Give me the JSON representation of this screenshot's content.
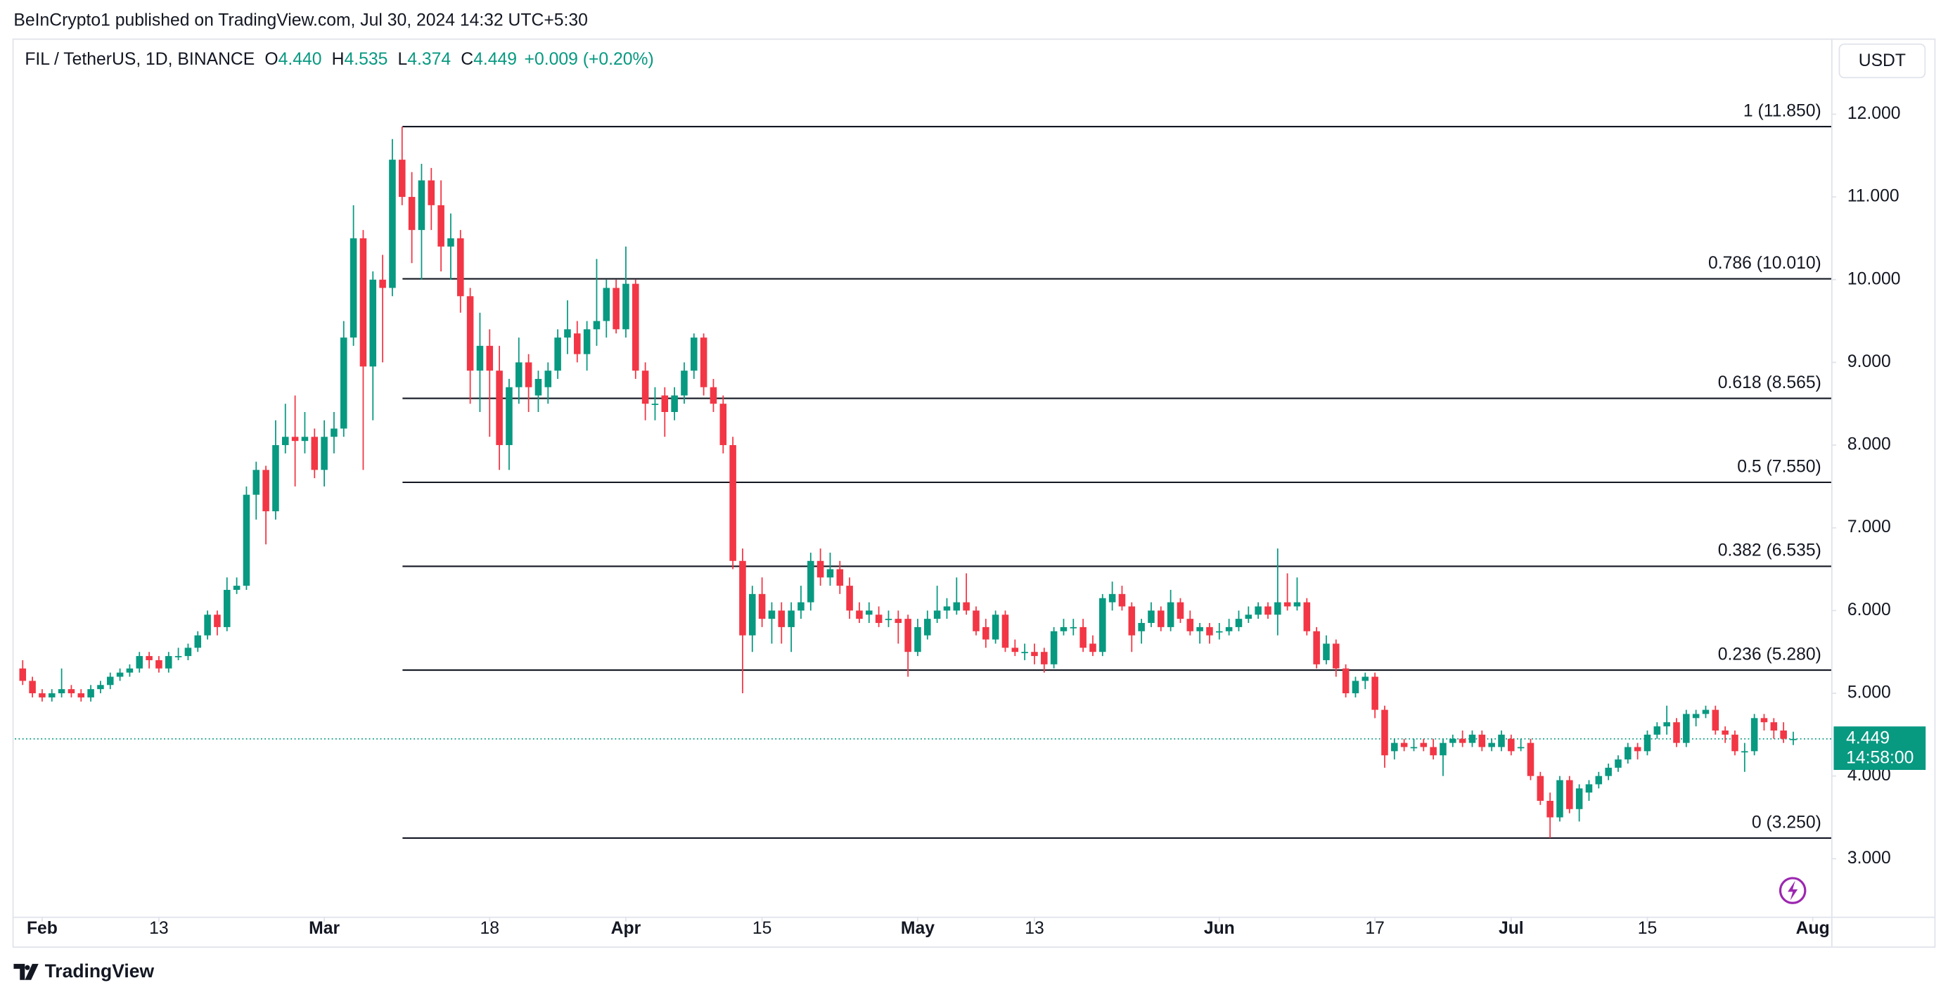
{
  "header": "BeInCrypto1 published on TradingView.com, Jul 30, 2024 14:32 UTC+5:30",
  "footer": "TradingView",
  "chart_data": {
    "type": "candlestick",
    "title": "FIL / TetherUS, 1D, BINANCE",
    "legend": {
      "o_key": "O",
      "open": "4.440",
      "h_key": "H",
      "high": "4.535",
      "l_key": "L",
      "low": "4.374",
      "c_key": "C",
      "close": "4.449",
      "change": "+0.009 (+0.20%)"
    },
    "currency": "USDT",
    "last_price": 4.449,
    "countdown": "14:58:00",
    "up_color": "#089981",
    "down_color": "#f23645",
    "xlim": [
      -0.8,
      185.9
    ],
    "xticks": [
      {
        "value": 2,
        "label": "Feb"
      },
      {
        "value": 14,
        "label": "13"
      },
      {
        "value": 31,
        "label": "Mar"
      },
      {
        "value": 48,
        "label": "18"
      },
      {
        "value": 62,
        "label": "Apr"
      },
      {
        "value": 76,
        "label": "15"
      },
      {
        "value": 92,
        "label": "May"
      },
      {
        "value": 104,
        "label": "13"
      },
      {
        "value": 123,
        "label": "Jun"
      },
      {
        "value": 139,
        "label": "17"
      },
      {
        "value": 153,
        "label": "Jul"
      },
      {
        "value": 167,
        "label": "15"
      },
      {
        "value": 184,
        "label": "Aug"
      }
    ],
    "ylim": [
      2.3,
      12.9
    ],
    "yticks": [
      {
        "value": 3,
        "label": "3.000"
      },
      {
        "value": 4,
        "label": "4.000"
      },
      {
        "value": 5,
        "label": "5.000"
      },
      {
        "value": 6,
        "label": "6.000"
      },
      {
        "value": 7,
        "label": "7.000"
      },
      {
        "value": 8,
        "label": "8.000"
      },
      {
        "value": 9,
        "label": "9.000"
      },
      {
        "value": 10,
        "label": "10.000"
      },
      {
        "value": 11,
        "label": "11.000"
      },
      {
        "value": 12,
        "label": "12.000"
      }
    ],
    "fib_levels": [
      {
        "label": "1 (11.850)",
        "value": 11.85
      },
      {
        "label": "0.786 (10.010)",
        "value": 10.01
      },
      {
        "label": "0.618 (8.565)",
        "value": 8.565
      },
      {
        "label": "0.5 (7.550)",
        "value": 7.55
      },
      {
        "label": "0.382 (6.535)",
        "value": 6.535
      },
      {
        "label": "0.236 (5.280)",
        "value": 5.28
      },
      {
        "label": "0 (3.250)",
        "value": 3.25
      }
    ],
    "candles": [
      [
        5.3,
        5.4,
        5.1,
        5.15
      ],
      [
        5.15,
        5.2,
        4.95,
        5.0
      ],
      [
        5.0,
        5.05,
        4.9,
        4.95
      ],
      [
        4.95,
        5.05,
        4.9,
        5.0
      ],
      [
        5.0,
        5.3,
        4.95,
        5.05
      ],
      [
        5.05,
        5.1,
        4.95,
        5.0
      ],
      [
        5.0,
        5.05,
        4.9,
        4.95
      ],
      [
        4.95,
        5.1,
        4.9,
        5.05
      ],
      [
        5.05,
        5.15,
        5.0,
        5.1
      ],
      [
        5.1,
        5.25,
        5.05,
        5.2
      ],
      [
        5.2,
        5.3,
        5.15,
        5.25
      ],
      [
        5.25,
        5.35,
        5.2,
        5.3
      ],
      [
        5.3,
        5.5,
        5.25,
        5.45
      ],
      [
        5.45,
        5.5,
        5.3,
        5.4
      ],
      [
        5.4,
        5.45,
        5.25,
        5.3
      ],
      [
        5.3,
        5.5,
        5.25,
        5.45
      ],
      [
        5.45,
        5.55,
        5.4,
        5.45
      ],
      [
        5.45,
        5.6,
        5.4,
        5.55
      ],
      [
        5.55,
        5.75,
        5.5,
        5.7
      ],
      [
        5.7,
        6.0,
        5.65,
        5.95
      ],
      [
        5.95,
        6.0,
        5.7,
        5.8
      ],
      [
        5.8,
        6.4,
        5.75,
        6.25
      ],
      [
        6.25,
        6.4,
        6.2,
        6.3
      ],
      [
        6.3,
        7.5,
        6.25,
        7.4
      ],
      [
        7.4,
        7.8,
        7.1,
        7.7
      ],
      [
        7.7,
        7.75,
        6.8,
        7.2
      ],
      [
        7.2,
        8.3,
        7.1,
        8.0
      ],
      [
        8.0,
        8.5,
        7.9,
        8.1
      ],
      [
        8.1,
        8.6,
        7.5,
        8.05
      ],
      [
        8.05,
        8.4,
        7.9,
        8.1
      ],
      [
        8.1,
        8.2,
        7.6,
        7.7
      ],
      [
        7.7,
        8.3,
        7.5,
        8.1
      ],
      [
        8.1,
        8.4,
        7.9,
        8.2
      ],
      [
        8.2,
        9.5,
        8.1,
        9.3
      ],
      [
        9.3,
        10.9,
        9.2,
        10.5
      ],
      [
        10.5,
        10.6,
        7.7,
        8.95
      ],
      [
        8.95,
        10.1,
        8.3,
        10.0
      ],
      [
        10.0,
        10.3,
        9.0,
        9.9
      ],
      [
        9.9,
        11.7,
        9.8,
        11.45
      ],
      [
        11.45,
        11.85,
        10.9,
        11.0
      ],
      [
        11.0,
        11.3,
        10.2,
        10.6
      ],
      [
        10.6,
        11.4,
        10.0,
        11.2
      ],
      [
        11.2,
        11.35,
        10.6,
        10.9
      ],
      [
        10.9,
        11.2,
        10.1,
        10.4
      ],
      [
        10.4,
        10.8,
        10.0,
        10.5
      ],
      [
        10.5,
        10.6,
        9.6,
        9.8
      ],
      [
        9.8,
        9.9,
        8.5,
        8.9
      ],
      [
        8.9,
        9.6,
        8.4,
        9.2
      ],
      [
        9.2,
        9.4,
        8.1,
        8.9
      ],
      [
        8.9,
        9.2,
        7.7,
        8.0
      ],
      [
        8.0,
        8.8,
        7.7,
        8.7
      ],
      [
        8.7,
        9.3,
        8.5,
        9.0
      ],
      [
        9.0,
        9.1,
        8.4,
        8.7
      ],
      [
        8.6,
        8.9,
        8.4,
        8.8
      ],
      [
        8.7,
        9.0,
        8.5,
        8.9
      ],
      [
        8.9,
        9.4,
        8.8,
        9.3
      ],
      [
        9.3,
        9.75,
        9.1,
        9.4
      ],
      [
        9.35,
        9.5,
        9.0,
        9.1
      ],
      [
        9.1,
        9.5,
        8.9,
        9.4
      ],
      [
        9.4,
        10.25,
        9.2,
        9.5
      ],
      [
        9.5,
        10.0,
        9.3,
        9.9
      ],
      [
        9.9,
        10.0,
        9.35,
        9.4
      ],
      [
        9.4,
        10.4,
        9.3,
        9.95
      ],
      [
        9.95,
        10.0,
        8.8,
        8.9
      ],
      [
        8.9,
        9.0,
        8.3,
        8.5
      ],
      [
        8.5,
        8.7,
        8.3,
        8.5
      ],
      [
        8.6,
        8.7,
        8.1,
        8.4
      ],
      [
        8.4,
        8.7,
        8.3,
        8.6
      ],
      [
        8.6,
        9.0,
        8.5,
        8.9
      ],
      [
        8.9,
        9.35,
        8.8,
        9.3
      ],
      [
        9.3,
        9.35,
        8.6,
        8.7
      ],
      [
        8.7,
        8.8,
        8.4,
        8.5
      ],
      [
        8.5,
        8.6,
        7.9,
        8.0
      ],
      [
        8.0,
        8.1,
        6.5,
        6.6
      ],
      [
        6.6,
        6.75,
        5.0,
        5.7
      ],
      [
        5.7,
        6.3,
        5.5,
        6.2
      ],
      [
        6.2,
        6.4,
        5.8,
        5.9
      ],
      [
        5.9,
        6.1,
        5.6,
        6.0
      ],
      [
        6.0,
        6.1,
        5.6,
        5.8
      ],
      [
        5.8,
        6.1,
        5.5,
        6.0
      ],
      [
        6.0,
        6.3,
        5.9,
        6.1
      ],
      [
        6.1,
        6.7,
        6.0,
        6.6
      ],
      [
        6.6,
        6.75,
        6.3,
        6.4
      ],
      [
        6.4,
        6.7,
        6.3,
        6.5
      ],
      [
        6.5,
        6.6,
        6.2,
        6.3
      ],
      [
        6.3,
        6.4,
        5.9,
        6.0
      ],
      [
        6.0,
        6.1,
        5.85,
        5.9
      ],
      [
        5.95,
        6.1,
        5.85,
        6.0
      ],
      [
        5.95,
        6.05,
        5.8,
        5.85
      ],
      [
        5.9,
        6.0,
        5.8,
        5.9
      ],
      [
        5.9,
        6.0,
        5.6,
        5.85
      ],
      [
        5.9,
        5.95,
        5.2,
        5.5
      ],
      [
        5.5,
        5.9,
        5.45,
        5.8
      ],
      [
        5.7,
        6.0,
        5.65,
        5.9
      ],
      [
        5.9,
        6.3,
        5.85,
        6.0
      ],
      [
        6.0,
        6.15,
        5.9,
        6.05
      ],
      [
        6.0,
        6.4,
        5.95,
        6.1
      ],
      [
        6.1,
        6.45,
        5.95,
        6.0
      ],
      [
        6.0,
        6.05,
        5.7,
        5.75
      ],
      [
        5.8,
        5.9,
        5.55,
        5.65
      ],
      [
        5.65,
        6.0,
        5.6,
        5.95
      ],
      [
        5.95,
        6.0,
        5.5,
        5.55
      ],
      [
        5.55,
        5.65,
        5.45,
        5.5
      ],
      [
        5.5,
        5.6,
        5.4,
        5.5
      ],
      [
        5.5,
        5.6,
        5.35,
        5.45
      ],
      [
        5.5,
        5.55,
        5.25,
        5.35
      ],
      [
        5.35,
        5.8,
        5.3,
        5.75
      ],
      [
        5.75,
        5.9,
        5.7,
        5.8
      ],
      [
        5.8,
        5.9,
        5.7,
        5.8
      ],
      [
        5.8,
        5.9,
        5.5,
        5.55
      ],
      [
        5.6,
        5.7,
        5.45,
        5.5
      ],
      [
        5.5,
        6.2,
        5.45,
        6.15
      ],
      [
        6.1,
        6.35,
        6.0,
        6.2
      ],
      [
        6.2,
        6.3,
        6.0,
        6.05
      ],
      [
        6.05,
        6.1,
        5.5,
        5.7
      ],
      [
        5.75,
        5.9,
        5.6,
        5.85
      ],
      [
        5.85,
        6.1,
        5.8,
        6.0
      ],
      [
        6.0,
        6.05,
        5.75,
        5.8
      ],
      [
        5.8,
        6.25,
        5.75,
        6.1
      ],
      [
        6.1,
        6.15,
        5.85,
        5.9
      ],
      [
        5.9,
        6.0,
        5.7,
        5.75
      ],
      [
        5.75,
        5.85,
        5.6,
        5.8
      ],
      [
        5.8,
        5.85,
        5.6,
        5.7
      ],
      [
        5.75,
        5.85,
        5.65,
        5.75
      ],
      [
        5.75,
        5.9,
        5.7,
        5.8
      ],
      [
        5.8,
        6.0,
        5.75,
        5.9
      ],
      [
        5.9,
        6.05,
        5.85,
        5.95
      ],
      [
        5.95,
        6.1,
        5.9,
        6.05
      ],
      [
        6.05,
        6.1,
        5.9,
        5.95
      ],
      [
        5.95,
        6.75,
        5.7,
        6.1
      ],
      [
        6.1,
        6.45,
        6.0,
        6.05
      ],
      [
        6.05,
        6.4,
        6.0,
        6.1
      ],
      [
        6.1,
        6.15,
        5.7,
        5.75
      ],
      [
        5.75,
        5.8,
        5.3,
        5.35
      ],
      [
        5.4,
        5.7,
        5.35,
        5.6
      ],
      [
        5.6,
        5.65,
        5.2,
        5.3
      ],
      [
        5.3,
        5.35,
        4.95,
        5.0
      ],
      [
        5.0,
        5.2,
        4.95,
        5.15
      ],
      [
        5.15,
        5.25,
        5.05,
        5.2
      ],
      [
        5.2,
        5.25,
        4.7,
        4.8
      ],
      [
        4.8,
        4.85,
        4.1,
        4.25
      ],
      [
        4.3,
        4.45,
        4.2,
        4.4
      ],
      [
        4.4,
        4.45,
        4.3,
        4.35
      ],
      [
        4.35,
        4.45,
        4.3,
        4.35
      ],
      [
        4.4,
        4.45,
        4.3,
        4.35
      ],
      [
        4.35,
        4.45,
        4.2,
        4.25
      ],
      [
        4.25,
        4.45,
        4.0,
        4.4
      ],
      [
        4.4,
        4.5,
        4.35,
        4.45
      ],
      [
        4.45,
        4.55,
        4.35,
        4.4
      ],
      [
        4.4,
        4.55,
        4.35,
        4.5
      ],
      [
        4.5,
        4.55,
        4.3,
        4.35
      ],
      [
        4.35,
        4.45,
        4.3,
        4.4
      ],
      [
        4.35,
        4.55,
        4.3,
        4.5
      ],
      [
        4.45,
        4.5,
        4.25,
        4.3
      ],
      [
        4.35,
        4.45,
        4.3,
        4.35
      ],
      [
        4.4,
        4.45,
        3.95,
        4.0
      ],
      [
        4.0,
        4.05,
        3.65,
        3.7
      ],
      [
        3.7,
        3.8,
        3.25,
        3.5
      ],
      [
        3.5,
        4.0,
        3.45,
        3.95
      ],
      [
        3.95,
        4.0,
        3.55,
        3.6
      ],
      [
        3.6,
        3.9,
        3.45,
        3.85
      ],
      [
        3.8,
        3.95,
        3.7,
        3.9
      ],
      [
        3.9,
        4.05,
        3.85,
        4.0
      ],
      [
        4.0,
        4.15,
        3.95,
        4.1
      ],
      [
        4.1,
        4.25,
        4.05,
        4.2
      ],
      [
        4.2,
        4.4,
        4.15,
        4.35
      ],
      [
        4.35,
        4.4,
        4.2,
        4.3
      ],
      [
        4.3,
        4.55,
        4.25,
        4.5
      ],
      [
        4.5,
        4.65,
        4.45,
        4.6
      ],
      [
        4.6,
        4.85,
        4.5,
        4.65
      ],
      [
        4.65,
        4.7,
        4.35,
        4.4
      ],
      [
        4.4,
        4.8,
        4.35,
        4.75
      ],
      [
        4.7,
        4.8,
        4.6,
        4.75
      ],
      [
        4.75,
        4.85,
        4.7,
        4.8
      ],
      [
        4.8,
        4.85,
        4.5,
        4.55
      ],
      [
        4.55,
        4.6,
        4.4,
        4.5
      ],
      [
        4.5,
        4.55,
        4.25,
        4.3
      ],
      [
        4.3,
        4.4,
        4.05,
        4.3
      ],
      [
        4.3,
        4.75,
        4.25,
        4.7
      ],
      [
        4.7,
        4.75,
        4.55,
        4.65
      ],
      [
        4.65,
        4.7,
        4.45,
        4.55
      ],
      [
        4.55,
        4.65,
        4.4,
        4.45
      ],
      [
        4.44,
        4.535,
        4.374,
        4.449
      ]
    ]
  }
}
